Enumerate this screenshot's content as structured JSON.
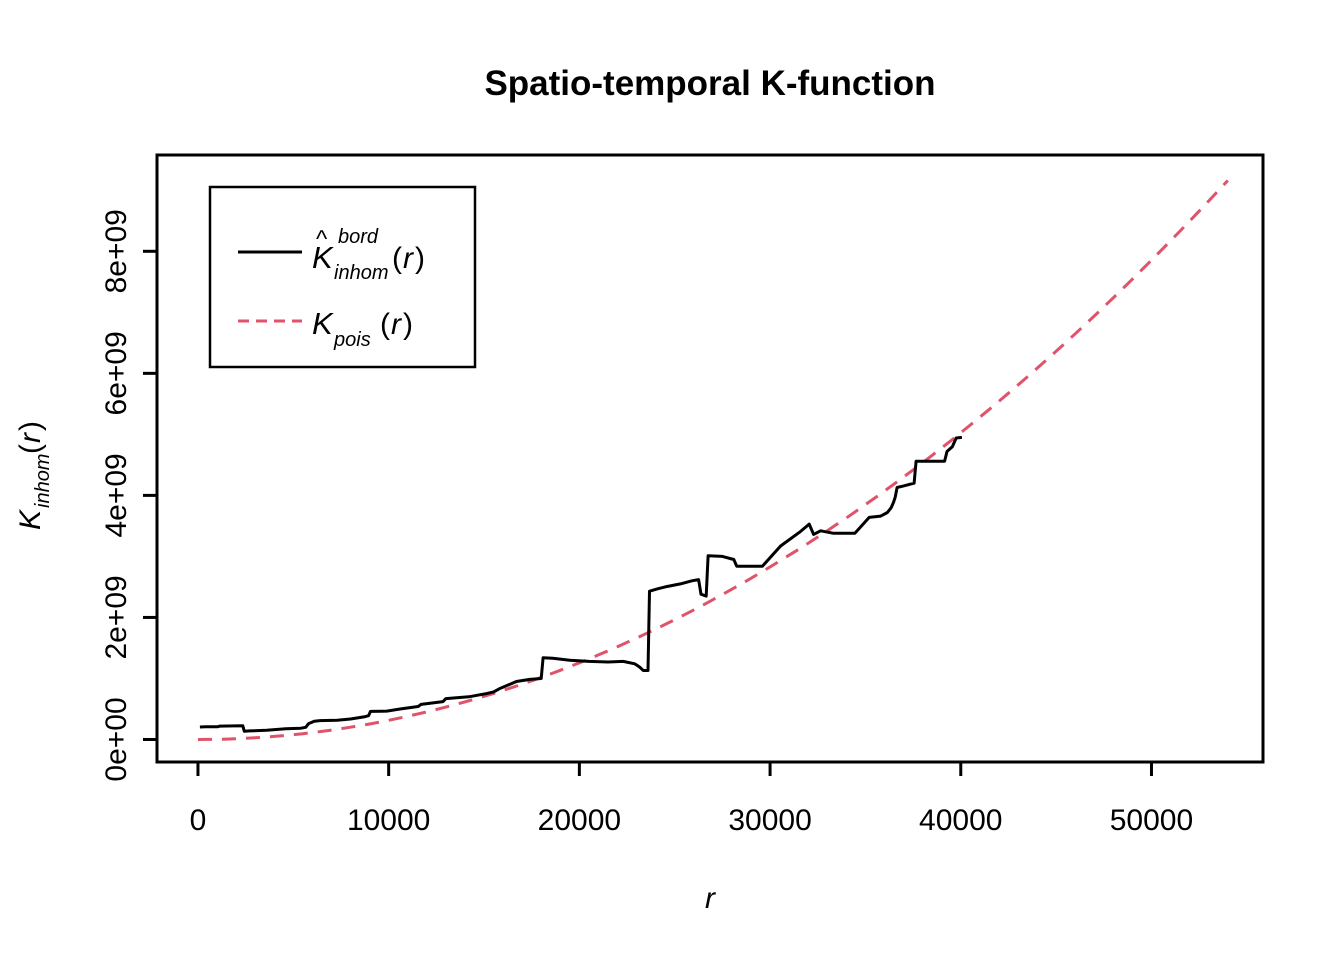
{
  "title": "Spatio-temporal K-function",
  "axes": {
    "x": {
      "label": "r",
      "ticks": [
        {
          "value": 0,
          "label": "0"
        },
        {
          "value": 10000,
          "label": "10000"
        },
        {
          "value": 20000,
          "label": "20000"
        },
        {
          "value": 30000,
          "label": "30000"
        },
        {
          "value": 40000,
          "label": "40000"
        },
        {
          "value": 50000,
          "label": "50000"
        }
      ]
    },
    "y": {
      "label_parts": {
        "main": "K",
        "sub": "inhom",
        "open": "(",
        "var": "r",
        "close": ")"
      },
      "ticks": [
        {
          "value": 0,
          "label": "0e+00"
        },
        {
          "value": 2000000000,
          "label": "2e+09"
        },
        {
          "value": 4000000000,
          "label": "4e+09"
        },
        {
          "value": 6000000000,
          "label": "6e+09"
        },
        {
          "value": 8000000000,
          "label": "8e+09"
        }
      ]
    }
  },
  "legend": {
    "items": [
      {
        "name": "empirical-border-corrected-K",
        "line_style": "solid",
        "color": "#000000",
        "parts": {
          "hat": "^",
          "main": "K",
          "sup": "bord",
          "sub": "inhom",
          "open": "(",
          "var": "r",
          "close": ")"
        }
      },
      {
        "name": "poisson-K",
        "line_style": "dashed",
        "color": "#DF536B",
        "parts": {
          "main": "K",
          "sub": "pois",
          "open": "(",
          "var": "r",
          "close": ")"
        }
      }
    ]
  },
  "colors": {
    "empirical": "#000000",
    "poisson": "#DF536B",
    "frame": "#000000",
    "background": "#FFFFFF"
  },
  "chart_data": {
    "type": "line",
    "title": "Spatio-temporal K-function",
    "xlabel": "r",
    "ylabel": "K_inhom(r)",
    "xlim": [
      -2148,
      55848
    ],
    "ylim": [
      -369000000,
      9578000000
    ],
    "x_ticks": [
      0,
      10000,
      20000,
      30000,
      40000,
      50000
    ],
    "y_ticks": [
      0,
      2000000000,
      4000000000,
      6000000000,
      8000000000
    ],
    "grid": false,
    "legend_position": "top-left",
    "series": [
      {
        "name": "Khat_bord_inhom(r)",
        "style": "solid",
        "color": "#000000",
        "y_unit": 1000000000,
        "points": [
          [
            100,
            0.205
          ],
          [
            400,
            0.21
          ],
          [
            1050,
            0.21
          ],
          [
            1150,
            0.22
          ],
          [
            2350,
            0.225
          ],
          [
            2430,
            0.135
          ],
          [
            2700,
            0.14
          ],
          [
            3600,
            0.15
          ],
          [
            4600,
            0.175
          ],
          [
            5400,
            0.185
          ],
          [
            5650,
            0.2
          ],
          [
            5800,
            0.26
          ],
          [
            6100,
            0.3
          ],
          [
            6400,
            0.31
          ],
          [
            7300,
            0.315
          ],
          [
            8000,
            0.335
          ],
          [
            8700,
            0.37
          ],
          [
            8950,
            0.39
          ],
          [
            9050,
            0.46
          ],
          [
            9900,
            0.465
          ],
          [
            10600,
            0.5
          ],
          [
            11550,
            0.54
          ],
          [
            11700,
            0.575
          ],
          [
            12850,
            0.62
          ],
          [
            13000,
            0.67
          ],
          [
            14200,
            0.7
          ],
          [
            15100,
            0.75
          ],
          [
            15500,
            0.78
          ],
          [
            15800,
            0.83
          ],
          [
            16700,
            0.95
          ],
          [
            17400,
            0.985
          ],
          [
            18000,
            1.0
          ],
          [
            18100,
            1.34
          ],
          [
            18600,
            1.33
          ],
          [
            19500,
            1.3
          ],
          [
            20500,
            1.28
          ],
          [
            21500,
            1.27
          ],
          [
            22300,
            1.28
          ],
          [
            22900,
            1.24
          ],
          [
            23150,
            1.19
          ],
          [
            23350,
            1.13
          ],
          [
            23600,
            1.13
          ],
          [
            23680,
            2.43
          ],
          [
            24100,
            2.47
          ],
          [
            24500,
            2.5
          ],
          [
            25300,
            2.55
          ],
          [
            25900,
            2.6
          ],
          [
            26250,
            2.62
          ],
          [
            26380,
            2.38
          ],
          [
            26650,
            2.35
          ],
          [
            26750,
            3.01
          ],
          [
            27500,
            3.0
          ],
          [
            28100,
            2.95
          ],
          [
            28250,
            2.84
          ],
          [
            29600,
            2.84
          ],
          [
            30550,
            3.17
          ],
          [
            31600,
            3.41
          ],
          [
            32050,
            3.53
          ],
          [
            32280,
            3.36
          ],
          [
            32650,
            3.42
          ],
          [
            33300,
            3.38
          ],
          [
            34450,
            3.38
          ],
          [
            35200,
            3.64
          ],
          [
            35800,
            3.66
          ],
          [
            36150,
            3.72
          ],
          [
            36350,
            3.8
          ],
          [
            36480,
            3.89
          ],
          [
            36560,
            3.97
          ],
          [
            36660,
            4.13
          ],
          [
            36950,
            4.15
          ],
          [
            37550,
            4.2
          ],
          [
            37660,
            4.56
          ],
          [
            39150,
            4.56
          ],
          [
            39280,
            4.72
          ],
          [
            39560,
            4.8
          ],
          [
            39760,
            4.94
          ],
          [
            40060,
            4.95
          ]
        ]
      },
      {
        "name": "K_pois(r)",
        "style": "dashed",
        "color": "#DF536B",
        "y_unit": 1,
        "model": {
          "formula": "coef * r^power",
          "coef": 3.14159265,
          "power": 2
        },
        "r_range": [
          0,
          54000
        ],
        "sample_step": 500
      }
    ]
  }
}
